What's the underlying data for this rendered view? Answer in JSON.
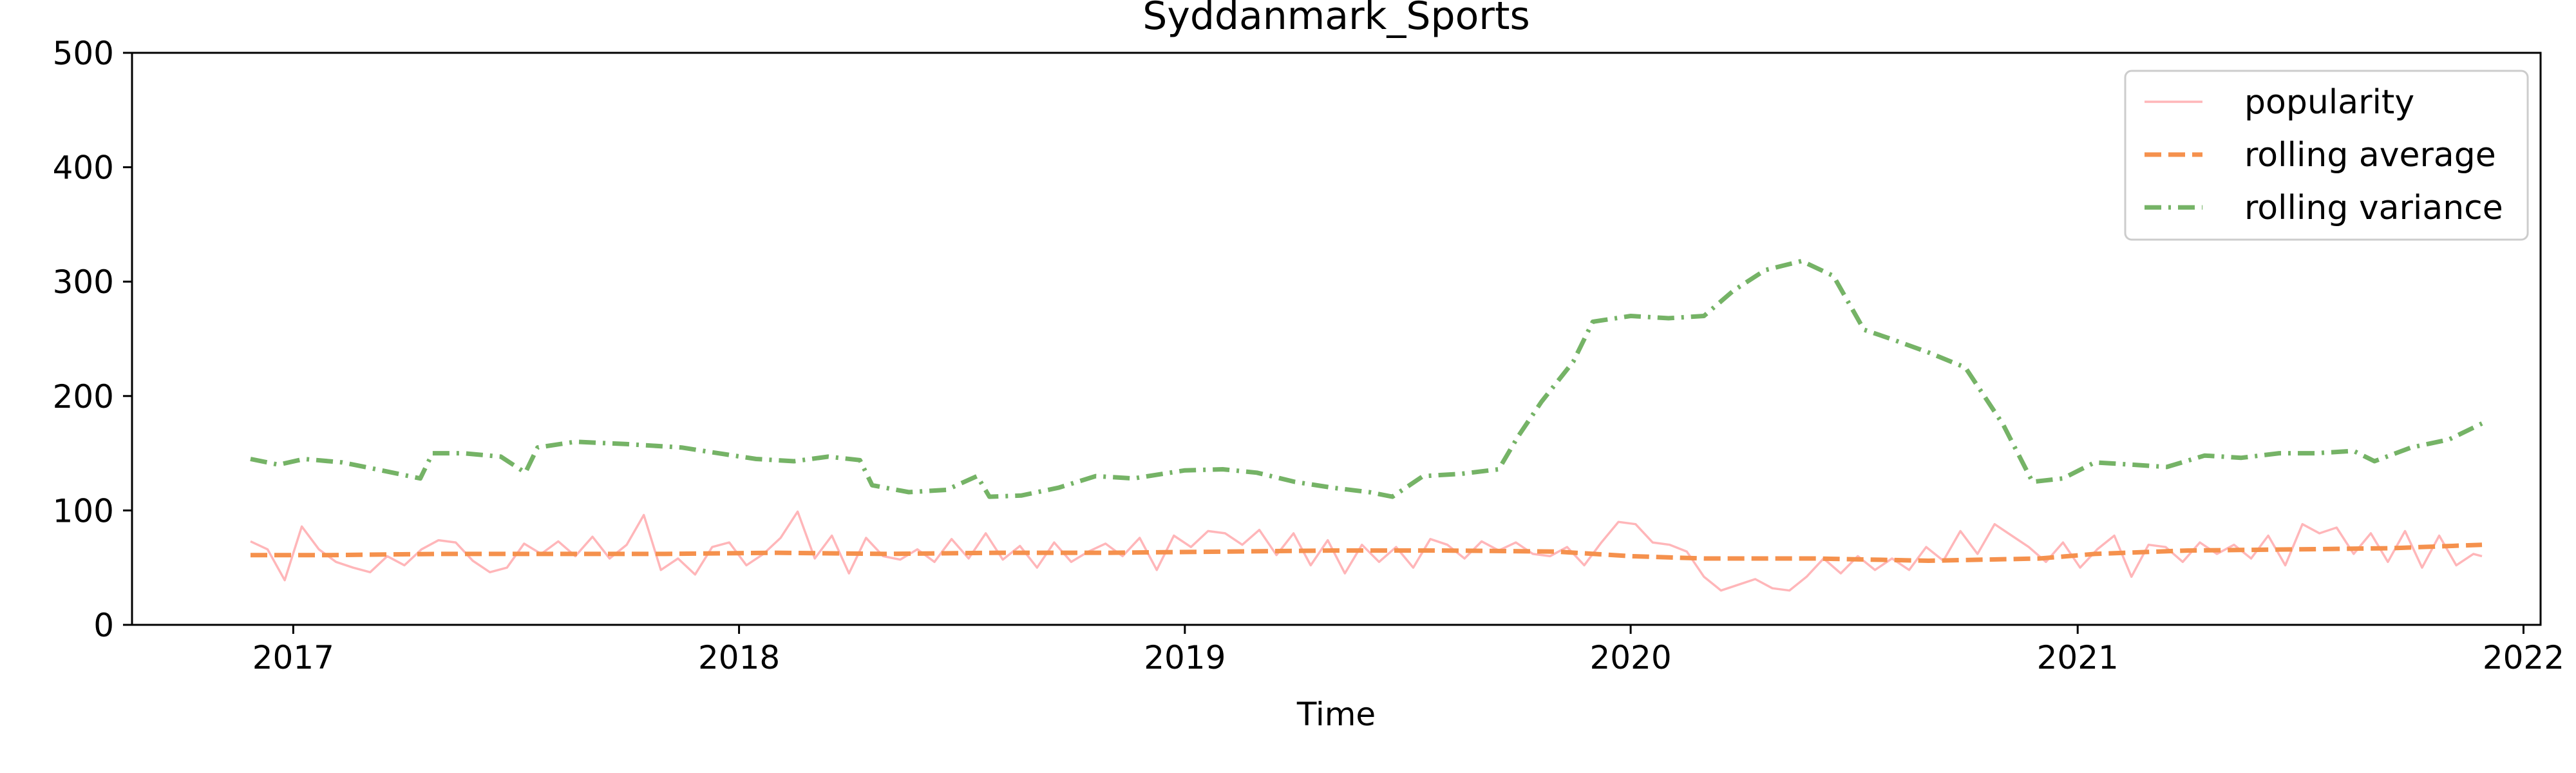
{
  "chart_data": {
    "type": "line",
    "title": "Syddanmark_Sports",
    "xlabel": "Time",
    "ylabel": "",
    "ylim": [
      0,
      500
    ],
    "xlim": [
      "2016-08-22",
      "2022-01-15"
    ],
    "y_ticks": [
      0,
      100,
      200,
      300,
      400,
      500
    ],
    "x_ticks": [
      "2017",
      "2018",
      "2019",
      "2020",
      "2021",
      "2022"
    ],
    "grid": false,
    "legend_position": "top-right",
    "series": [
      {
        "name": "popularity",
        "color": "#ffb6b9",
        "style": "solid",
        "points": [
          [
            "2016-11-27",
            73
          ],
          [
            "2016-12-11",
            66
          ],
          [
            "2016-12-25",
            39
          ],
          [
            "2017-01-08",
            86
          ],
          [
            "2017-01-22",
            66
          ],
          [
            "2017-02-05",
            55
          ],
          [
            "2017-02-19",
            50
          ],
          [
            "2017-03-05",
            46
          ],
          [
            "2017-03-19",
            60
          ],
          [
            "2017-04-02",
            52
          ],
          [
            "2017-04-16",
            66
          ],
          [
            "2017-04-30",
            74
          ],
          [
            "2017-05-14",
            72
          ],
          [
            "2017-05-28",
            56
          ],
          [
            "2017-06-11",
            46
          ],
          [
            "2017-06-25",
            50
          ],
          [
            "2017-07-09",
            71
          ],
          [
            "2017-07-23",
            62
          ],
          [
            "2017-08-06",
            73
          ],
          [
            "2017-08-20",
            60
          ],
          [
            "2017-09-03",
            77
          ],
          [
            "2017-09-17",
            58
          ],
          [
            "2017-10-01",
            70
          ],
          [
            "2017-10-15",
            96
          ],
          [
            "2017-10-29",
            48
          ],
          [
            "2017-11-12",
            58
          ],
          [
            "2017-11-26",
            44
          ],
          [
            "2017-12-10",
            68
          ],
          [
            "2017-12-24",
            72
          ],
          [
            "2018-01-07",
            52
          ],
          [
            "2018-01-21",
            62
          ],
          [
            "2018-02-04",
            76
          ],
          [
            "2018-02-18",
            99
          ],
          [
            "2018-03-04",
            58
          ],
          [
            "2018-03-18",
            78
          ],
          [
            "2018-04-01",
            45
          ],
          [
            "2018-04-15",
            76
          ],
          [
            "2018-04-29",
            60
          ],
          [
            "2018-05-13",
            57
          ],
          [
            "2018-05-27",
            66
          ],
          [
            "2018-06-10",
            55
          ],
          [
            "2018-06-24",
            75
          ],
          [
            "2018-07-08",
            58
          ],
          [
            "2018-07-22",
            80
          ],
          [
            "2018-08-05",
            57
          ],
          [
            "2018-08-19",
            69
          ],
          [
            "2018-09-02",
            50
          ],
          [
            "2018-09-16",
            72
          ],
          [
            "2018-09-30",
            55
          ],
          [
            "2018-10-14",
            64
          ],
          [
            "2018-10-28",
            71
          ],
          [
            "2018-11-11",
            60
          ],
          [
            "2018-11-25",
            76
          ],
          [
            "2018-12-09",
            48
          ],
          [
            "2018-12-23",
            78
          ],
          [
            "2019-01-06",
            68
          ],
          [
            "2019-01-20",
            82
          ],
          [
            "2019-02-03",
            80
          ],
          [
            "2019-02-17",
            70
          ],
          [
            "2019-03-03",
            83
          ],
          [
            "2019-03-17",
            61
          ],
          [
            "2019-03-31",
            80
          ],
          [
            "2019-04-14",
            52
          ],
          [
            "2019-04-28",
            74
          ],
          [
            "2019-05-12",
            45
          ],
          [
            "2019-05-26",
            70
          ],
          [
            "2019-06-09",
            55
          ],
          [
            "2019-06-23",
            68
          ],
          [
            "2019-07-07",
            50
          ],
          [
            "2019-07-21",
            75
          ],
          [
            "2019-08-04",
            70
          ],
          [
            "2019-08-18",
            58
          ],
          [
            "2019-09-01",
            73
          ],
          [
            "2019-09-15",
            65
          ],
          [
            "2019-09-29",
            72
          ],
          [
            "2019-10-13",
            62
          ],
          [
            "2019-10-27",
            60
          ],
          [
            "2019-11-10",
            68
          ],
          [
            "2019-11-24",
            52
          ],
          [
            "2019-12-08",
            72
          ],
          [
            "2019-12-22",
            90
          ],
          [
            "2020-01-05",
            88
          ],
          [
            "2020-01-19",
            72
          ],
          [
            "2020-02-02",
            70
          ],
          [
            "2020-02-16",
            64
          ],
          [
            "2020-03-01",
            42
          ],
          [
            "2020-03-15",
            30
          ],
          [
            "2020-03-29",
            35
          ],
          [
            "2020-04-12",
            40
          ],
          [
            "2020-04-26",
            32
          ],
          [
            "2020-05-10",
            30
          ],
          [
            "2020-05-24",
            42
          ],
          [
            "2020-06-07",
            58
          ],
          [
            "2020-06-21",
            45
          ],
          [
            "2020-07-05",
            60
          ],
          [
            "2020-07-19",
            48
          ],
          [
            "2020-08-02",
            58
          ],
          [
            "2020-08-16",
            48
          ],
          [
            "2020-08-30",
            68
          ],
          [
            "2020-09-13",
            56
          ],
          [
            "2020-09-27",
            82
          ],
          [
            "2020-10-11",
            62
          ],
          [
            "2020-10-25",
            88
          ],
          [
            "2020-11-08",
            78
          ],
          [
            "2020-11-22",
            68
          ],
          [
            "2020-12-06",
            55
          ],
          [
            "2020-12-20",
            72
          ],
          [
            "2021-01-03",
            50
          ],
          [
            "2021-01-17",
            66
          ],
          [
            "2021-01-31",
            78
          ],
          [
            "2021-02-14",
            42
          ],
          [
            "2021-02-28",
            70
          ],
          [
            "2021-03-14",
            68
          ],
          [
            "2021-03-28",
            55
          ],
          [
            "2021-04-11",
            72
          ],
          [
            "2021-04-25",
            62
          ],
          [
            "2021-05-09",
            70
          ],
          [
            "2021-05-23",
            58
          ],
          [
            "2021-06-06",
            78
          ],
          [
            "2021-06-20",
            52
          ],
          [
            "2021-07-04",
            88
          ],
          [
            "2021-07-18",
            80
          ],
          [
            "2021-08-01",
            85
          ],
          [
            "2021-08-15",
            62
          ],
          [
            "2021-08-29",
            80
          ],
          [
            "2021-09-12",
            55
          ],
          [
            "2021-09-26",
            82
          ],
          [
            "2021-10-10",
            50
          ],
          [
            "2021-10-24",
            78
          ],
          [
            "2021-11-07",
            52
          ],
          [
            "2021-11-21",
            62
          ],
          [
            "2021-11-28",
            60
          ]
        ]
      },
      {
        "name": "rolling average",
        "color": "#f5914d",
        "style": "dashed",
        "points": [
          [
            "2016-11-27",
            61
          ],
          [
            "2017-02-01",
            61
          ],
          [
            "2017-05-01",
            62
          ],
          [
            "2017-08-01",
            62
          ],
          [
            "2017-11-01",
            62
          ],
          [
            "2018-02-01",
            63
          ],
          [
            "2018-05-01",
            62
          ],
          [
            "2018-08-01",
            63
          ],
          [
            "2018-11-01",
            63
          ],
          [
            "2019-02-01",
            64
          ],
          [
            "2019-05-01",
            65
          ],
          [
            "2019-08-01",
            65
          ],
          [
            "2019-11-01",
            64
          ],
          [
            "2020-01-01",
            60
          ],
          [
            "2020-03-01",
            58
          ],
          [
            "2020-06-01",
            58
          ],
          [
            "2020-09-01",
            56
          ],
          [
            "2020-12-01",
            58
          ],
          [
            "2021-01-15",
            62
          ],
          [
            "2021-04-01",
            65
          ],
          [
            "2021-07-01",
            66
          ],
          [
            "2021-09-15",
            67
          ],
          [
            "2021-11-28",
            70
          ]
        ]
      },
      {
        "name": "rolling variance",
        "color": "#75b366",
        "style": "dashdot",
        "points": [
          [
            "2016-11-27",
            145
          ],
          [
            "2016-12-20",
            140
          ],
          [
            "2017-01-10",
            145
          ],
          [
            "2017-02-10",
            142
          ],
          [
            "2017-03-10",
            136
          ],
          [
            "2017-04-15",
            128
          ],
          [
            "2017-04-25",
            150
          ],
          [
            "2017-05-20",
            150
          ],
          [
            "2017-06-20",
            147
          ],
          [
            "2017-07-10",
            133
          ],
          [
            "2017-07-20",
            155
          ],
          [
            "2017-08-20",
            160
          ],
          [
            "2017-10-01",
            158
          ],
          [
            "2017-11-15",
            155
          ],
          [
            "2017-12-15",
            150
          ],
          [
            "2018-01-15",
            145
          ],
          [
            "2018-02-15",
            143
          ],
          [
            "2018-03-15",
            147
          ],
          [
            "2018-04-10",
            144
          ],
          [
            "2018-04-20",
            122
          ],
          [
            "2018-05-20",
            116
          ],
          [
            "2018-06-20",
            118
          ],
          [
            "2018-07-15",
            130
          ],
          [
            "2018-07-25",
            112
          ],
          [
            "2018-08-20",
            113
          ],
          [
            "2018-09-20",
            120
          ],
          [
            "2018-10-20",
            130
          ],
          [
            "2018-11-20",
            128
          ],
          [
            "2019-01-01",
            135
          ],
          [
            "2019-02-01",
            136
          ],
          [
            "2019-03-01",
            133
          ],
          [
            "2019-04-01",
            125
          ],
          [
            "2019-05-01",
            120
          ],
          [
            "2019-06-01",
            116
          ],
          [
            "2019-06-20",
            112
          ],
          [
            "2019-07-15",
            130
          ],
          [
            "2019-08-15",
            132
          ],
          [
            "2019-09-15",
            136
          ],
          [
            "2019-10-01",
            165
          ],
          [
            "2019-10-20",
            195
          ],
          [
            "2019-11-15",
            230
          ],
          [
            "2019-12-01",
            265
          ],
          [
            "2020-01-01",
            270
          ],
          [
            "2020-02-01",
            268
          ],
          [
            "2020-03-01",
            270
          ],
          [
            "2020-03-25",
            292
          ],
          [
            "2020-04-20",
            310
          ],
          [
            "2020-05-20",
            318
          ],
          [
            "2020-06-15",
            305
          ],
          [
            "2020-07-10",
            258
          ],
          [
            "2020-08-01",
            250
          ],
          [
            "2020-09-01",
            238
          ],
          [
            "2020-10-01",
            225
          ],
          [
            "2020-11-01",
            175
          ],
          [
            "2020-11-25",
            125
          ],
          [
            "2020-12-20",
            128
          ],
          [
            "2021-01-15",
            142
          ],
          [
            "2021-02-15",
            140
          ],
          [
            "2021-03-15",
            138
          ],
          [
            "2021-04-15",
            148
          ],
          [
            "2021-05-15",
            146
          ],
          [
            "2021-06-15",
            150
          ],
          [
            "2021-07-15",
            150
          ],
          [
            "2021-08-15",
            152
          ],
          [
            "2021-09-01",
            143
          ],
          [
            "2021-10-01",
            155
          ],
          [
            "2021-11-01",
            162
          ],
          [
            "2021-11-28",
            176
          ]
        ]
      }
    ]
  }
}
